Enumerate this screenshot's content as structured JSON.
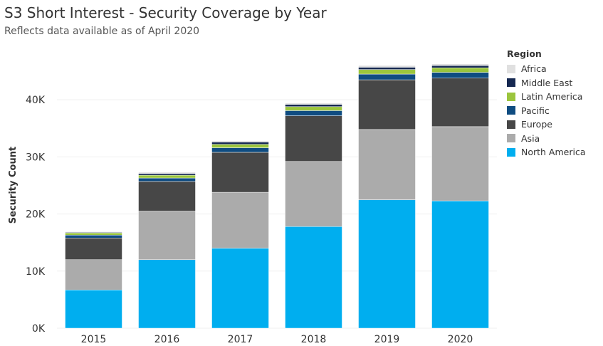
{
  "header": {
    "title": "S3 Short Interest - Security Coverage by Year",
    "subtitle": "Reflects data available as of April 2020"
  },
  "chart_data": {
    "type": "bar",
    "stacked": true,
    "title": "S3 Short Interest - Security Coverage by Year",
    "subtitle": "Reflects data available as of April 2020",
    "xlabel": "",
    "ylabel": "Security Count",
    "ylim": [
      0,
      47500
    ],
    "yticks": [
      0,
      10000,
      20000,
      30000,
      40000
    ],
    "ytick_labels": [
      "0K",
      "10K",
      "20K",
      "30K",
      "40K"
    ],
    "categories": [
      "2015",
      "2016",
      "2017",
      "2018",
      "2019",
      "2020"
    ],
    "legend": {
      "title": "Region",
      "position": "right"
    },
    "series": [
      {
        "name": "North America",
        "color": "#00AEEF",
        "values": [
          6700,
          12000,
          14000,
          17800,
          22500,
          22300
        ]
      },
      {
        "name": "Asia",
        "color": "#ABABAB",
        "values": [
          5300,
          8500,
          9800,
          11400,
          12300,
          13000
        ]
      },
      {
        "name": "Europe",
        "color": "#474747",
        "values": [
          3800,
          5200,
          7000,
          8000,
          8700,
          8500
        ]
      },
      {
        "name": "Pacific",
        "color": "#0F4C81",
        "values": [
          500,
          600,
          800,
          900,
          1000,
          1000
        ]
      },
      {
        "name": "Latin America",
        "color": "#9BC53D",
        "values": [
          400,
          500,
          600,
          700,
          800,
          800
        ]
      },
      {
        "name": "Middle East",
        "color": "#152851",
        "values": [
          100,
          300,
          400,
          400,
          400,
          400
        ]
      },
      {
        "name": "Africa",
        "color": "#E0E0E0",
        "values": [
          100,
          200,
          200,
          200,
          300,
          300
        ]
      }
    ]
  }
}
